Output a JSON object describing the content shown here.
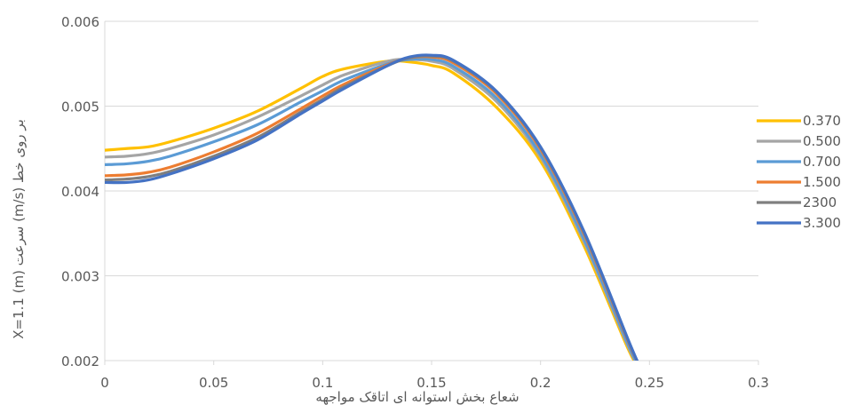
{
  "chart_data": {
    "type": "line",
    "title": "",
    "xlabel": "شعاع بخش استوانه ای اتاقک مواجهه",
    "ylabel": "X=1.1 (m) سرعت (m/s) بر روی خط",
    "xlim": [
      0,
      0.3
    ],
    "ylim": [
      0.002,
      0.006
    ],
    "x_ticks": [
      "0",
      "0.05",
      "0.1",
      "0.15",
      "0.2",
      "0.25",
      "0.3"
    ],
    "y_ticks": [
      "0.002",
      "0.003",
      "0.004",
      "0.005",
      "0.006"
    ],
    "grid": "horizontal",
    "legend_position": "right",
    "series": [
      {
        "name": "0.370",
        "color": "#FFC000",
        "x": [
          0,
          0.01,
          0.02,
          0.03,
          0.05,
          0.07,
          0.09,
          0.1,
          0.11,
          0.13,
          0.14,
          0.15,
          0.16,
          0.18,
          0.2,
          0.22,
          0.24,
          0.245
        ],
        "y": [
          0.00448,
          0.0045,
          0.00452,
          0.00458,
          0.00474,
          0.00494,
          0.00521,
          0.00535,
          0.00544,
          0.00553,
          0.00552,
          0.00548,
          0.00539,
          0.00498,
          0.00435,
          0.00335,
          0.00215,
          0.00194
        ]
      },
      {
        "name": "0.500",
        "color": "#A5A5A5",
        "x": [
          0,
          0.01,
          0.02,
          0.03,
          0.05,
          0.07,
          0.09,
          0.1,
          0.11,
          0.13,
          0.14,
          0.15,
          0.16,
          0.18,
          0.2,
          0.22,
          0.24,
          0.245
        ],
        "y": [
          0.0044,
          0.00441,
          0.00444,
          0.0045,
          0.00466,
          0.00487,
          0.00512,
          0.00525,
          0.00537,
          0.00553,
          0.00555,
          0.00553,
          0.00544,
          0.00505,
          0.0044,
          0.0034,
          0.00218,
          0.00194
        ]
      },
      {
        "name": "0.700",
        "color": "#5B9BD5",
        "x": [
          0,
          0.01,
          0.02,
          0.03,
          0.05,
          0.07,
          0.09,
          0.1,
          0.11,
          0.13,
          0.14,
          0.15,
          0.16,
          0.18,
          0.2,
          0.22,
          0.24,
          0.245
        ],
        "y": [
          0.00431,
          0.00432,
          0.00435,
          0.00441,
          0.00458,
          0.00478,
          0.00505,
          0.00518,
          0.00531,
          0.0055,
          0.00555,
          0.00555,
          0.00547,
          0.00509,
          0.00443,
          0.00343,
          0.0022,
          0.00194
        ]
      },
      {
        "name": "1.500",
        "color": "#ED7D31",
        "x": [
          0,
          0.01,
          0.02,
          0.03,
          0.05,
          0.07,
          0.09,
          0.1,
          0.11,
          0.13,
          0.14,
          0.15,
          0.16,
          0.18,
          0.2,
          0.22,
          0.24,
          0.245
        ],
        "y": [
          0.00418,
          0.00419,
          0.00422,
          0.00428,
          0.00446,
          0.00468,
          0.00497,
          0.00512,
          0.00526,
          0.00549,
          0.00557,
          0.00558,
          0.00551,
          0.00514,
          0.00449,
          0.00349,
          0.00224,
          0.00196
        ]
      },
      {
        "name": "2300",
        "color": "#7F7F7F",
        "x": [
          0,
          0.01,
          0.02,
          0.03,
          0.05,
          0.07,
          0.09,
          0.1,
          0.11,
          0.13,
          0.14,
          0.15,
          0.16,
          0.18,
          0.2,
          0.22,
          0.24,
          0.245
        ],
        "y": [
          0.00413,
          0.00414,
          0.00417,
          0.00423,
          0.00441,
          0.00463,
          0.00493,
          0.00508,
          0.00523,
          0.00548,
          0.00557,
          0.00559,
          0.00553,
          0.00516,
          0.00451,
          0.00351,
          0.00225,
          0.00196
        ]
      },
      {
        "name": "3.300",
        "color": "#4472C4",
        "x": [
          0,
          0.01,
          0.02,
          0.03,
          0.05,
          0.07,
          0.09,
          0.1,
          0.11,
          0.13,
          0.14,
          0.15,
          0.16,
          0.18,
          0.2,
          0.22,
          0.24,
          0.245
        ],
        "y": [
          0.0041,
          0.0041,
          0.00413,
          0.0042,
          0.00438,
          0.0046,
          0.00491,
          0.00506,
          0.00521,
          0.00548,
          0.00558,
          0.0056,
          0.00554,
          0.00517,
          0.00452,
          0.00352,
          0.00226,
          0.00196
        ]
      }
    ]
  }
}
